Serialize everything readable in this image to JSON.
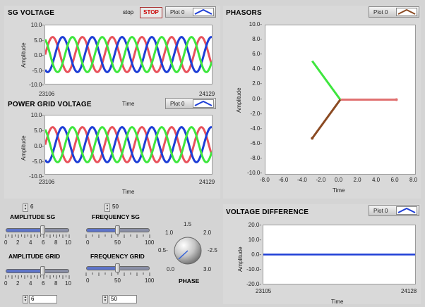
{
  "sg_voltage": {
    "title": "SG VOLTAGE",
    "stop_label": "stop",
    "stop_button": "STOP",
    "legend": "Plot 0",
    "ylabel": "Amplitude",
    "xlabel": "Time",
    "yticks": [
      "10.0-",
      "5.0-",
      "0.0-",
      "-5.0-",
      "-10.0-"
    ],
    "xmin": "23106",
    "xmax": "24129"
  },
  "power_grid_voltage": {
    "title": "POWER GRID VOLTAGE",
    "legend": "Plot 0",
    "ylabel": "Amplitude",
    "xlabel": "Time",
    "yticks": [
      "10.0-",
      "5.0-",
      "0.0-",
      "-5.0-",
      "-10.0-"
    ],
    "xmin": "23106",
    "xmax": "24129"
  },
  "phasors": {
    "title": "PHASORS",
    "legend": "Plot 0",
    "ylabel": "Amplitude",
    "xlabel": "Time",
    "yticks": [
      "10.0-",
      "8.0-",
      "6.0-",
      "4.0-",
      "2.0-",
      "0.0-",
      "-2.0-",
      "-4.0-",
      "-6.0-",
      "-8.0-",
      "-10.0-"
    ],
    "xticks": [
      "-8.0",
      "-6.0",
      "-4.0",
      "-2.0",
      "0.0",
      "2.0",
      "4.0",
      "6.0",
      "8.0"
    ]
  },
  "voltage_difference": {
    "title": "VOLTAGE DIFFERENCE",
    "legend": "Plot 0",
    "ylabel": "Amplitude",
    "xlabel": "Time",
    "yticks": [
      "20.0-",
      "10.0-",
      "0.0-",
      "-10.0-",
      "-20.0-"
    ],
    "xmin": "23105",
    "xmax": "24128"
  },
  "controls": {
    "amplitude_sg": {
      "name": "AMPLITUDE  SG",
      "value": "6",
      "level": 0.6,
      "scale": [
        "0",
        "2",
        "4",
        "6",
        "8",
        "10"
      ]
    },
    "frequency_sg": {
      "name": "FREQUENCY  SG",
      "value": "50",
      "level": 0.5,
      "scale": [
        "0",
        "50",
        "100"
      ]
    },
    "amplitude_grid": {
      "name": "AMPLITUDE GRID",
      "value": "6",
      "level": 0.6,
      "scale": [
        "0",
        "2",
        "4",
        "6",
        "8",
        "10"
      ]
    },
    "frequency_grid": {
      "name": "FREQUENCY  GRID",
      "value": "50",
      "level": 0.5,
      "scale": [
        "0",
        "50",
        "100"
      ]
    },
    "phase": {
      "name": "PHASE",
      "scale": [
        "0.0",
        "0.5-",
        "1.0",
        "1.5",
        "2.0",
        "-2.5",
        "3.0"
      ]
    }
  },
  "colors": {
    "red": "#e8525c",
    "green": "#3ee63e",
    "blue": "#1e3ed6",
    "brown": "#8b4a22",
    "pink": "#e07070"
  },
  "chart_data": [
    {
      "type": "line",
      "title": "SG VOLTAGE",
      "xlabel": "Time",
      "ylabel": "Amplitude",
      "ylim": [
        -10,
        10
      ],
      "xlim": [
        23106,
        24129
      ],
      "series": [
        {
          "amplitude": 6,
          "frequency": 50,
          "phase_deg": 0
        },
        {
          "amplitude": 6,
          "frequency": 50,
          "phase_deg": 120
        },
        {
          "amplitude": 6,
          "frequency": 50,
          "phase_deg": 240
        }
      ]
    },
    {
      "type": "line",
      "title": "POWER GRID VOLTAGE",
      "xlabel": "Time",
      "ylabel": "Amplitude",
      "ylim": [
        -10,
        10
      ],
      "xlim": [
        23106,
        24129
      ],
      "series": [
        {
          "amplitude": 6,
          "frequency": 50,
          "phase_deg": 0
        },
        {
          "amplitude": 6,
          "frequency": 50,
          "phase_deg": 120
        },
        {
          "amplitude": 6,
          "frequency": 50,
          "phase_deg": 240
        }
      ]
    },
    {
      "type": "line",
      "title": "PHASORS",
      "xlabel": "Time",
      "ylabel": "Amplitude",
      "xlim": [
        -8,
        8
      ],
      "ylim": [
        -10,
        10
      ],
      "series": [
        {
          "x": [
            0,
            6
          ],
          "y": [
            0,
            0
          ]
        },
        {
          "x": [
            0,
            -3
          ],
          "y": [
            0,
            5.2
          ]
        },
        {
          "x": [
            0,
            -3
          ],
          "y": [
            0,
            -5.2
          ]
        }
      ]
    },
    {
      "type": "line",
      "title": "VOLTAGE DIFFERENCE",
      "xlabel": "Time",
      "ylabel": "Amplitude",
      "ylim": [
        -20,
        20
      ],
      "xlim": [
        23105,
        24128
      ],
      "series": [
        {
          "x": [
            23105,
            24128
          ],
          "y": [
            0,
            0
          ]
        }
      ]
    }
  ]
}
